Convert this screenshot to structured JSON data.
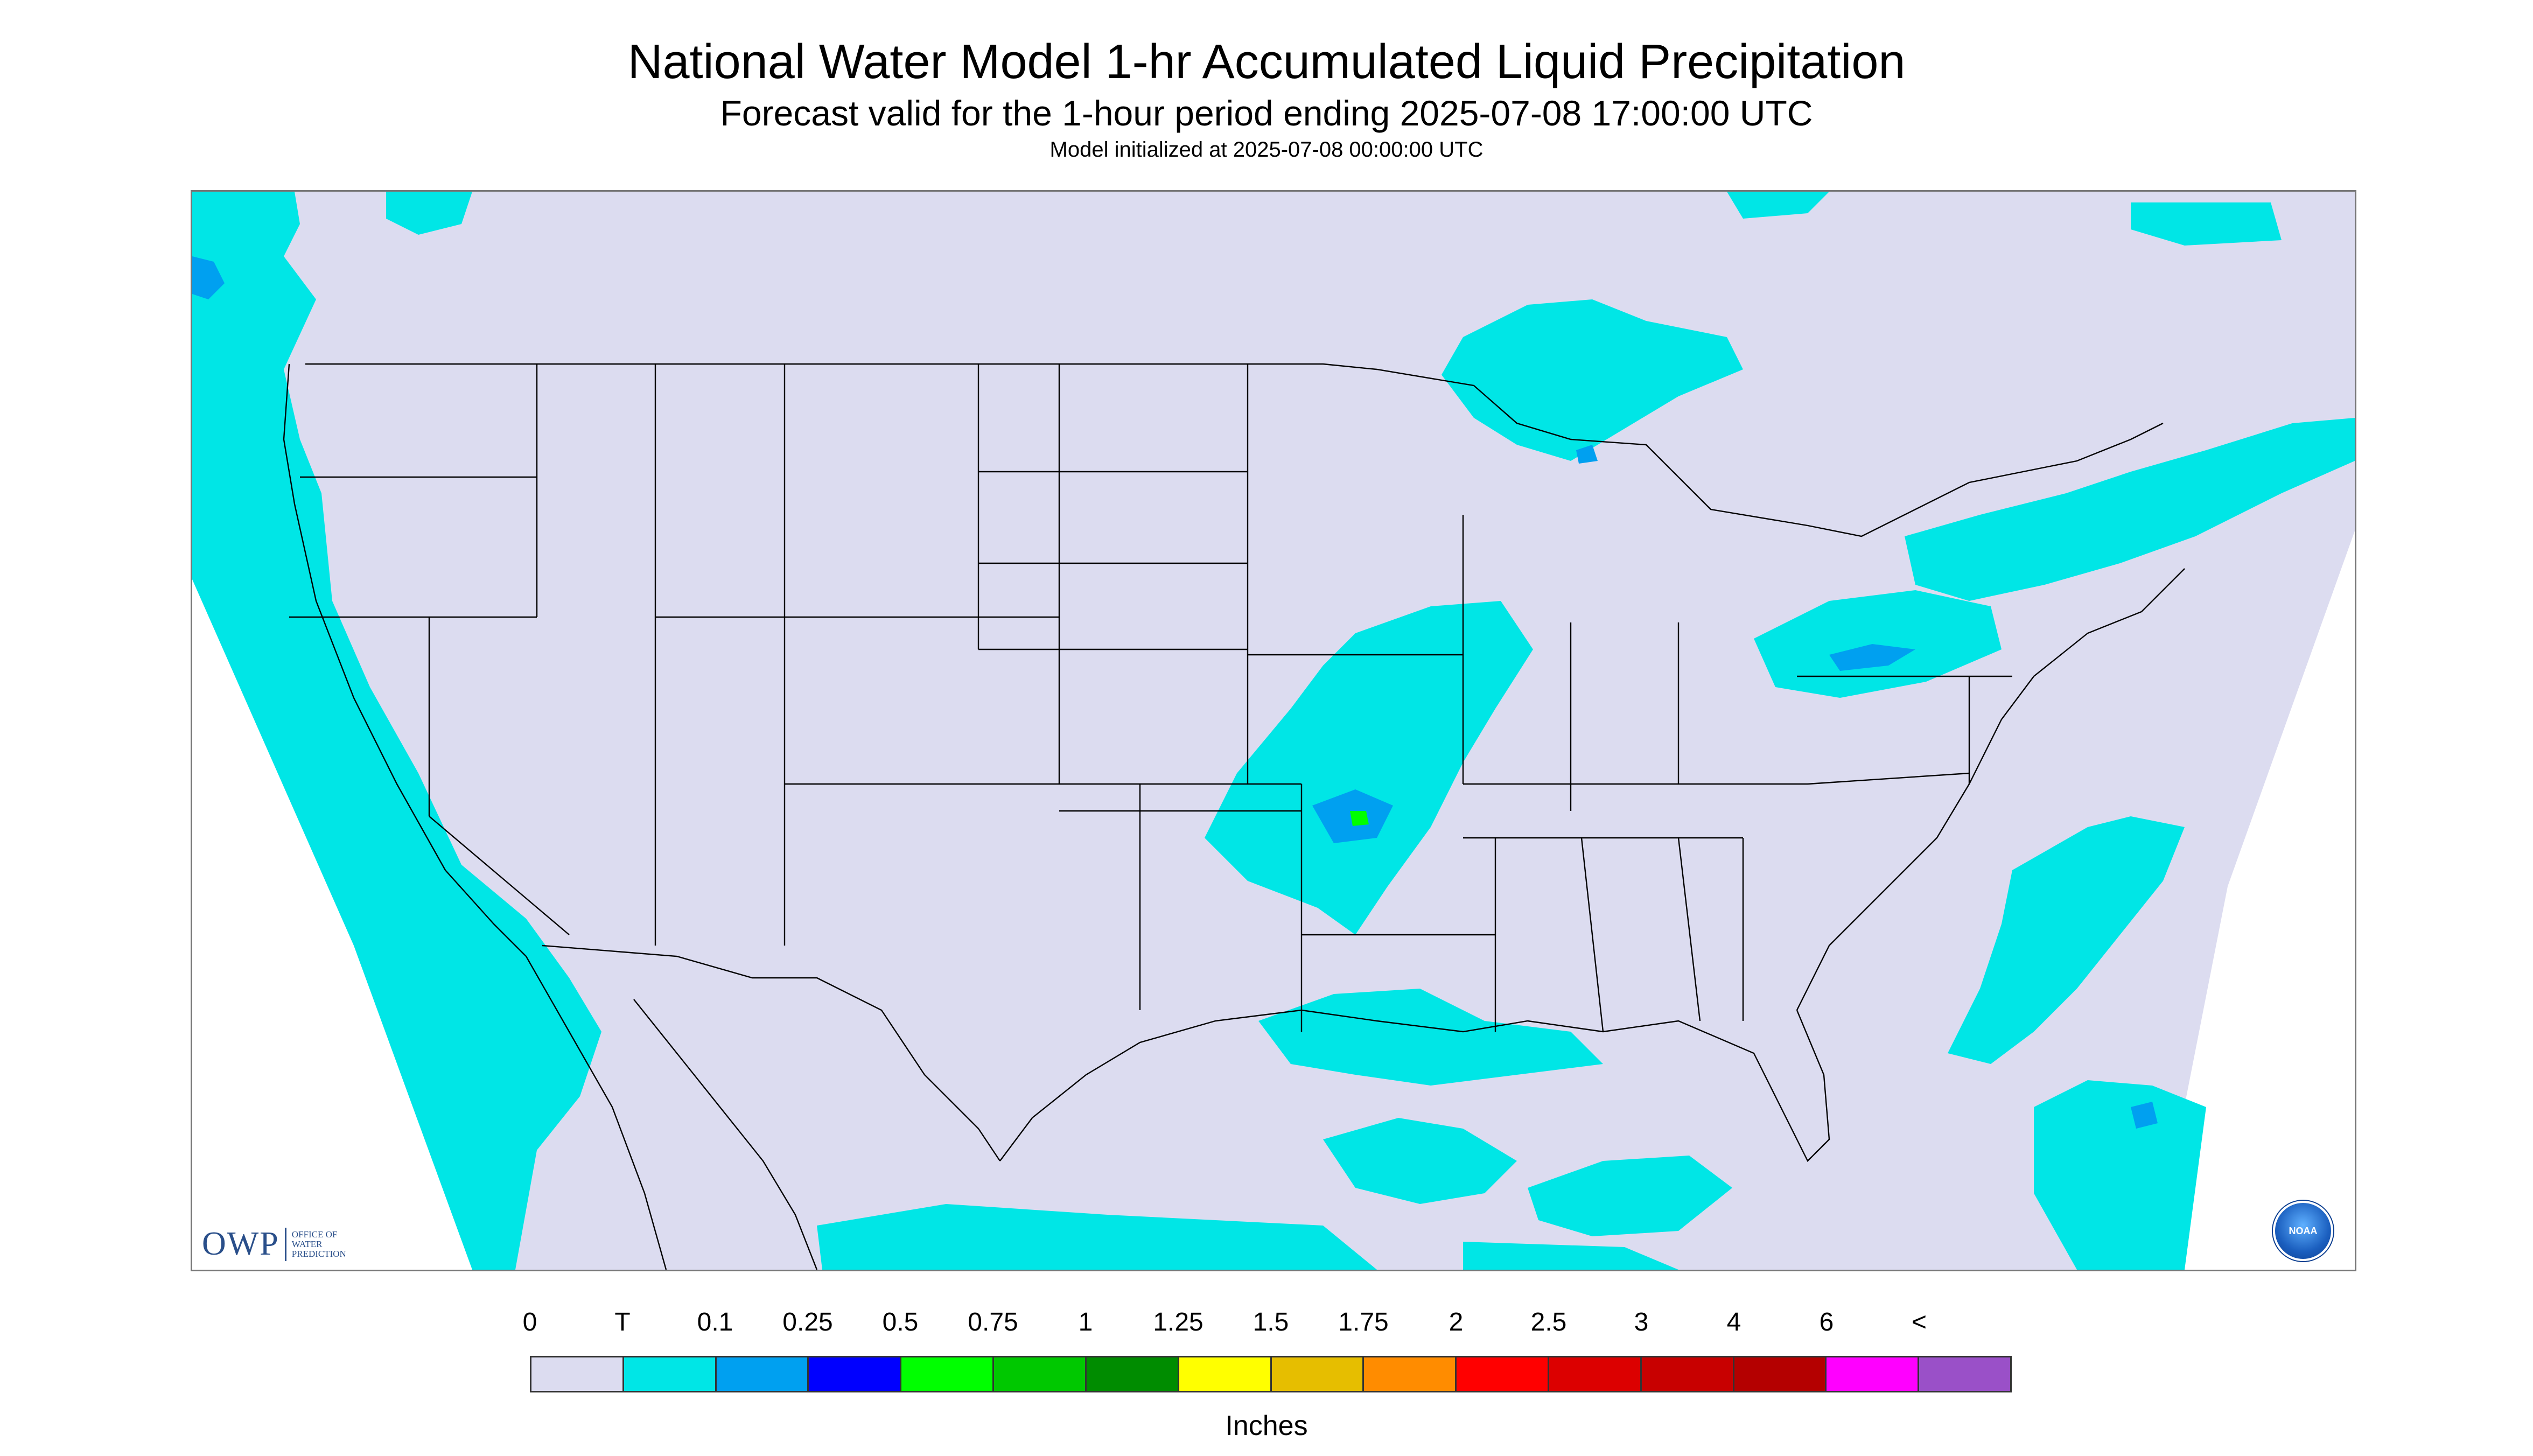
{
  "title": "National Water Model 1-hr Accumulated Liquid Precipitation",
  "subtitle": "Forecast valid for the 1-hour period ending 2025-07-08 17:00:00 UTC",
  "init_line": "Model initialized at 2025-07-08 00:00:00 UTC",
  "logos": {
    "owp_mark": "OWP",
    "owp_text": "OFFICE OF\nWATER\nPREDICTION",
    "noaa_text": "NOAA"
  },
  "legend": {
    "units_label": "Inches",
    "tick_labels": [
      "0",
      "T",
      "0.1",
      "0.25",
      "0.5",
      "0.75",
      "1",
      "1.25",
      "1.5",
      "1.75",
      "2",
      "2.5",
      "3",
      "4",
      "6",
      "<"
    ],
    "colors": [
      "#dcdcf0",
      "#00e6e6",
      "#00a0f0",
      "#0000ff",
      "#00ff00",
      "#00c800",
      "#008c00",
      "#ffff00",
      "#e6be00",
      "#ff8c00",
      "#ff0000",
      "#dc0000",
      "#c80000",
      "#b40000",
      "#ff00ff",
      "#9a50c8"
    ]
  },
  "colors": {
    "no_data": "#ffffff",
    "zero_precip": "#dcdcf0",
    "trace": "#00e6e6",
    "light": "#00a0f0",
    "moderate": "#0000ff",
    "heavy": "#00ff00",
    "boundary": "#000000"
  }
}
